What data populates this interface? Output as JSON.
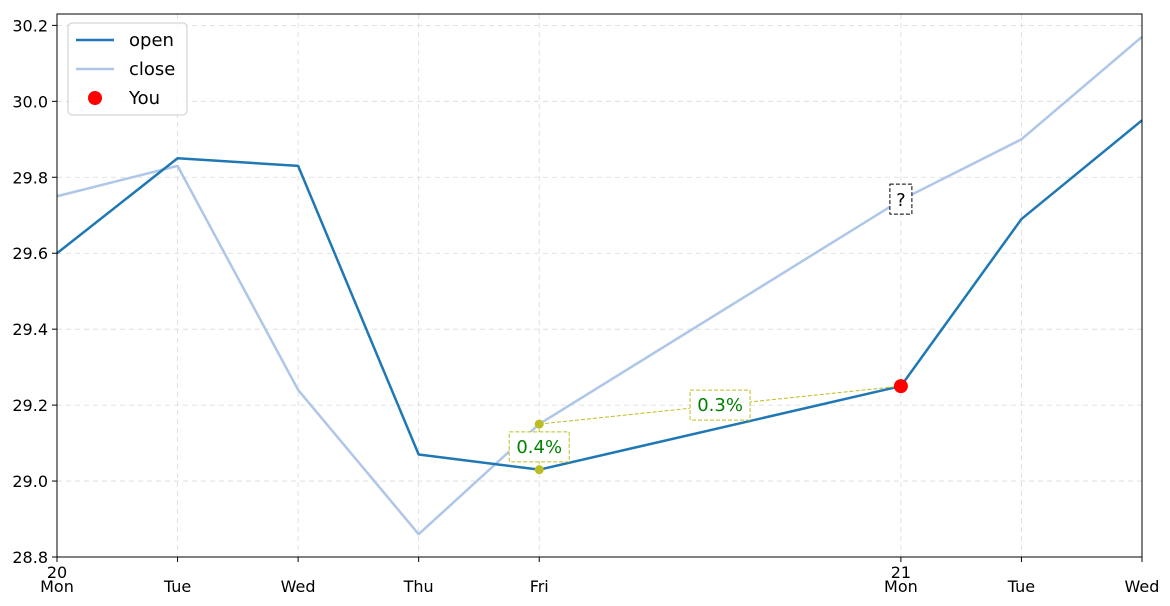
{
  "chart_data": {
    "type": "line",
    "x": [
      {
        "top": "20",
        "bottom": "Mon"
      },
      {
        "top": "",
        "bottom": "Tue"
      },
      {
        "top": "",
        "bottom": "Wed"
      },
      {
        "top": "",
        "bottom": "Thu"
      },
      {
        "top": "",
        "bottom": "Fri"
      },
      {
        "top": "",
        "bottom": ""
      },
      {
        "top": "",
        "bottom": ""
      },
      {
        "top": "21",
        "bottom": "Mon"
      },
      {
        "top": "",
        "bottom": "Tue"
      },
      {
        "top": "",
        "bottom": "Wed"
      }
    ],
    "visible_x_index": [
      0,
      1,
      2,
      3,
      4,
      7,
      8,
      9
    ],
    "series": [
      {
        "name": "open",
        "color": "#1f77b4",
        "values": [
          29.6,
          29.85,
          29.83,
          29.07,
          29.03,
          null,
          null,
          29.25,
          29.69,
          29.95
        ]
      },
      {
        "name": "close",
        "color": "#aec7e8",
        "values": [
          29.75,
          29.83,
          29.24,
          28.86,
          29.15,
          null,
          null,
          29.74,
          29.9,
          30.17
        ]
      }
    ],
    "marker": {
      "name": "You",
      "color": "#ff0000",
      "x_index": 7,
      "value": 29.25
    },
    "annotations": [
      {
        "text": "0.4%",
        "kind": "gap",
        "x_index": 4,
        "from": 29.03,
        "to": 29.15
      },
      {
        "text": "0.3%",
        "kind": "change",
        "from_x_index": 4,
        "from": 29.15,
        "to_x_index": 7,
        "to": 29.25
      },
      {
        "text": "?",
        "kind": "unknown",
        "x_index": 7,
        "value": 29.74
      }
    ],
    "annotation_color": "#bcbd22",
    "annotation_text_color": "#008000",
    "ylim": [
      28.8,
      30.23
    ],
    "y_ticks": [
      "28.8",
      "29.0",
      "29.2",
      "29.4",
      "29.6",
      "29.8",
      "30.0",
      "30.2"
    ],
    "y_tick_values": [
      28.8,
      29.0,
      29.2,
      29.4,
      29.6,
      29.8,
      30.0,
      30.2
    ],
    "grid": true,
    "legend": "top-left",
    "title": "",
    "xlabel": "",
    "ylabel": ""
  }
}
